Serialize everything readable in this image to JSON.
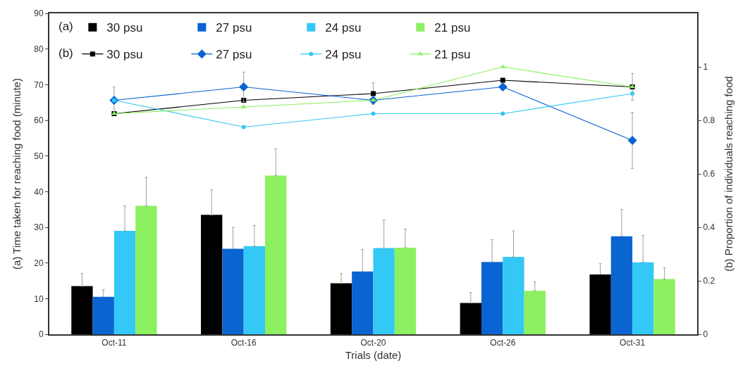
{
  "chart_data": {
    "type": "bar",
    "categories": [
      "Oct-11",
      "Oct-16",
      "Oct-20",
      "Oct-26",
      "Oct-31"
    ],
    "xlabel": "Trials (date)",
    "ylabel": "(a) Time taken for reaching food (minute)",
    "y2label": "(b) Proportion of individuals reaching food",
    "annotations": [
      "(a)",
      "(b)"
    ],
    "ylim": [
      0,
      90
    ],
    "yticks": [
      0,
      10,
      20,
      30,
      40,
      50,
      60,
      70,
      80,
      90
    ],
    "y2lim": [
      0,
      1.2
    ],
    "y2ticks": [
      0,
      0.2,
      0.4,
      0.6,
      0.8,
      1
    ],
    "legend": "top left",
    "series": [
      {
        "name": "30 psu",
        "color": "#000000",
        "values": [
          13.5,
          33.5,
          14.3,
          8.8,
          16.8
        ],
        "errors": [
          [
            13.5,
            17
          ],
          [
            33.5,
            40.5
          ],
          [
            14.3,
            17
          ],
          [
            8.8,
            11.7
          ],
          [
            16.8,
            19.8
          ]
        ]
      },
      {
        "name": "27 psu",
        "color": "#0a64d2",
        "values": [
          10.5,
          24,
          17.6,
          20.3,
          27.5
        ],
        "errors": [
          [
            10.5,
            12.5
          ],
          [
            24,
            30
          ],
          [
            17.6,
            23.8
          ],
          [
            20.3,
            26.5
          ],
          [
            27.5,
            35
          ]
        ]
      },
      {
        "name": "24 psu",
        "color": "#33c8f5",
        "values": [
          29,
          24.7,
          24.2,
          21.7,
          20.2
        ],
        "errors": [
          [
            29,
            36
          ],
          [
            24.7,
            30.5
          ],
          [
            24.2,
            32
          ],
          [
            21.7,
            29
          ],
          [
            20.2,
            27.7
          ]
        ]
      },
      {
        "name": "21 psu",
        "color": "#8cf060",
        "values": [
          36,
          44.5,
          24.3,
          12.2,
          15.5
        ],
        "errors": [
          [
            36,
            44
          ],
          [
            44.5,
            52
          ],
          [
            24.3,
            29.5
          ],
          [
            12.2,
            14.7
          ],
          [
            15.5,
            18.7
          ]
        ]
      },
      {
        "name": "30 psu",
        "type": "line",
        "axis": "y2",
        "marker": "square",
        "color": "#000000",
        "values": [
          0.825,
          0.875,
          0.9,
          0.95,
          0.925
        ],
        "errors": [
          null,
          null,
          0.04,
          null,
          0.05
        ]
      },
      {
        "name": "27 psu",
        "type": "line",
        "axis": "y2",
        "marker": "diamond",
        "color": "#0a64d2",
        "values": [
          0.875,
          0.925,
          0.875,
          0.925,
          0.725
        ],
        "errors": [
          0.05,
          0.055,
          null,
          null,
          0.105
        ]
      },
      {
        "name": "24 psu",
        "type": "line",
        "axis": "y2",
        "marker": "circle",
        "color": "#33c8f5",
        "values": [
          0.875,
          0.775,
          0.825,
          0.825,
          0.9
        ]
      },
      {
        "name": "21 psu",
        "type": "line",
        "axis": "y2",
        "marker": "triangle",
        "color": "#8cf060",
        "values": [
          0.825,
          0.85,
          0.875,
          1.0,
          0.925
        ]
      }
    ]
  }
}
